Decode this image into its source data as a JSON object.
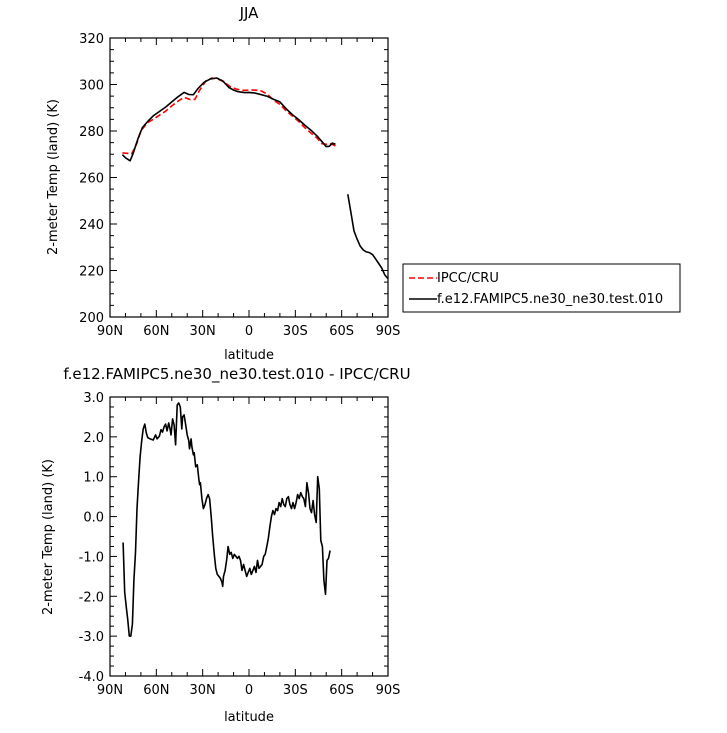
{
  "chart_data": [
    {
      "type": "line",
      "title": "JJA",
      "xlabel": "latitude",
      "ylabel": "2-meter Temp (land) (K)",
      "xlim": [
        90,
        -90
      ],
      "ylim": [
        200,
        320
      ],
      "x_ticks": [
        90,
        60,
        30,
        0,
        -30,
        -60,
        -90
      ],
      "x_tick_labels": [
        "90N",
        "60N",
        "30N",
        "0",
        "30S",
        "60S",
        "90S"
      ],
      "y_ticks": [
        200,
        220,
        240,
        260,
        280,
        300,
        320
      ],
      "y_tick_labels": [
        "200",
        "220",
        "240",
        "260",
        "280",
        "300",
        "320"
      ],
      "grid": false,
      "legend": "outside-right",
      "series": [
        {
          "name": "IPCC/CRU",
          "color": "#ff0000",
          "dash": "dashed",
          "segments": [
            [
              [
                82,
                270.6
              ],
              [
                79,
                270.4
              ],
              [
                76,
                270.2
              ],
              [
                73,
                274
              ],
              [
                70,
                280
              ],
              [
                66,
                283.5
              ],
              [
                62,
                285
              ],
              [
                58,
                286.8
              ],
              [
                54,
                288.5
              ],
              [
                50,
                290.8
              ],
              [
                46,
                292.8
              ],
              [
                42,
                294.5
              ],
              [
                38,
                293.5
              ],
              [
                35,
                293.6
              ],
              [
                32,
                297.5
              ],
              [
                28,
                301.5
              ],
              [
                24,
                302.8
              ],
              [
                20,
                302.3
              ],
              [
                16,
                301
              ],
              [
                12,
                299
              ],
              [
                8,
                298
              ],
              [
                4,
                297.5
              ],
              [
                0,
                297.6
              ],
              [
                -4,
                297.6
              ],
              [
                -8,
                297.2
              ],
              [
                -12,
                295.8
              ],
              [
                -16,
                293.2
              ],
              [
                -20,
                291.5
              ],
              [
                -24,
                288.7
              ],
              [
                -28,
                286.5
              ],
              [
                -32,
                284.2
              ],
              [
                -36,
                281.5
              ],
              [
                -40,
                279.2
              ],
              [
                -44,
                277
              ],
              [
                -47,
                274.6
              ],
              [
                -50,
                274.3
              ],
              [
                -53,
                274.6
              ],
              [
                -56,
                273.6
              ]
            ]
          ]
        },
        {
          "name": "f.e12.FAMIPC5.ne30_ne30.test.010",
          "color": "#000000",
          "dash": "solid",
          "segments": [
            [
              [
                82,
                269.8
              ],
              [
                80,
                268.5
              ],
              [
                77,
                267.2
              ],
              [
                75,
                270.4
              ],
              [
                72,
                276.5
              ],
              [
                69,
                281.5
              ],
              [
                65,
                284.5
              ],
              [
                62,
                286.5
              ],
              [
                58,
                288.4
              ],
              [
                54,
                290.3
              ],
              [
                50,
                292.5
              ],
              [
                46,
                294.7
              ],
              [
                42,
                296.6
              ],
              [
                39,
                295.7
              ],
              [
                36,
                295.6
              ],
              [
                33,
                298.3
              ],
              [
                29,
                301
              ],
              [
                25,
                302.4
              ],
              [
                21,
                302.8
              ],
              [
                17,
                301.6
              ],
              [
                13,
                298.7
              ],
              [
                10,
                297.6
              ],
              [
                7,
                296.9
              ],
              [
                3,
                296.5
              ],
              [
                0,
                296.6
              ],
              [
                -4,
                296.3
              ],
              [
                -8,
                295.6
              ],
              [
                -12,
                294.9
              ],
              [
                -16,
                293.6
              ],
              [
                -20,
                292.5
              ],
              [
                -24,
                289.6
              ],
              [
                -28,
                287.1
              ],
              [
                -32,
                285
              ],
              [
                -36,
                282.6
              ],
              [
                -40,
                280.4
              ],
              [
                -44,
                277.9
              ],
              [
                -47,
                275.6
              ],
              [
                -50,
                273.3
              ],
              [
                -52,
                273.4
              ],
              [
                -54,
                274.8
              ],
              [
                -56,
                274.3
              ]
            ],
            [
              [
                -64,
                252.8
              ],
              [
                -66,
                245
              ],
              [
                -68,
                237
              ],
              [
                -70,
                233.5
              ],
              [
                -72,
                230.5
              ],
              [
                -74,
                228.8
              ],
              [
                -76,
                228
              ],
              [
                -78,
                227.7
              ],
              [
                -80,
                226.8
              ],
              [
                -82,
                225
              ],
              [
                -84,
                223
              ],
              [
                -86,
                221
              ],
              [
                -88,
                218
              ],
              [
                -90,
                216.5
              ]
            ]
          ]
        }
      ]
    },
    {
      "type": "line",
      "title": "f.e12.FAMIPC5.ne30_ne30.test.010 - IPCC/CRU",
      "xlabel": "latitude",
      "ylabel": "2-meter Temp (land) (K)",
      "xlim": [
        90,
        -90
      ],
      "ylim": [
        -4,
        3
      ],
      "x_ticks": [
        90,
        60,
        30,
        0,
        -30,
        -60,
        -90
      ],
      "x_tick_labels": [
        "90N",
        "60N",
        "30N",
        "0",
        "30S",
        "60S",
        "90S"
      ],
      "y_ticks": [
        -4,
        -3,
        -2,
        -1,
        0,
        1,
        2,
        3
      ],
      "y_tick_labels": [
        "-4.0",
        "-3.0",
        "-2.0",
        "-1.0",
        "0.0",
        "1.0",
        "2.0",
        "3.0"
      ],
      "grid": false,
      "series": [
        {
          "color": "#000000",
          "dash": "solid",
          "segments": [
            [
              [
                81.5,
                -0.65
              ],
              [
                80.5,
                -1.9
              ],
              [
                79.5,
                -2.25
              ],
              [
                78.5,
                -2.6
              ],
              [
                77.5,
                -3.0
              ],
              [
                76.5,
                -3.0
              ],
              [
                75.5,
                -2.7
              ],
              [
                74.5,
                -1.6
              ],
              [
                73.5,
                -0.9
              ],
              [
                72.5,
                0.2
              ],
              [
                71.5,
                0.9
              ],
              [
                70.5,
                1.5
              ],
              [
                69.5,
                1.9
              ],
              [
                68.5,
                2.2
              ],
              [
                67.5,
                2.32
              ],
              [
                66.5,
                2.1
              ],
              [
                65.5,
                1.98
              ],
              [
                64,
                1.95
              ],
              [
                62,
                1.92
              ],
              [
                60.5,
                2.05
              ],
              [
                59.5,
                1.95
              ],
              [
                58,
                2.02
              ],
              [
                57,
                2.18
              ],
              [
                56,
                2.12
              ],
              [
                55,
                2.25
              ],
              [
                54,
                2.32
              ],
              [
                53,
                2.15
              ],
              [
                52,
                2.35
              ],
              [
                51,
                2.18
              ],
              [
                50.5,
                2.05
              ],
              [
                49.5,
                2.45
              ],
              [
                48.5,
                2.3
              ],
              [
                47.5,
                1.8
              ],
              [
                46.5,
                2.8
              ],
              [
                45.5,
                2.85
              ],
              [
                44.5,
                2.75
              ],
              [
                43.5,
                2.2
              ],
              [
                43,
                2.5
              ],
              [
                42,
                2.55
              ],
              [
                41,
                2.3
              ],
              [
                40,
                2.05
              ],
              [
                39,
                1.9
              ],
              [
                38.5,
                1.7
              ],
              [
                37.5,
                1.95
              ],
              [
                37,
                1.75
              ],
              [
                36,
                1.55
              ],
              [
                35.5,
                1.6
              ],
              [
                34.5,
                1.25
              ],
              [
                33.5,
                1.3
              ],
              [
                32.5,
                0.95
              ],
              [
                32,
                0.8
              ],
              [
                31.5,
                0.85
              ],
              [
                30.5,
                0.45
              ],
              [
                29.5,
                0.2
              ],
              [
                28.5,
                0.3
              ],
              [
                27.5,
                0.45
              ],
              [
                26.5,
                0.55
              ],
              [
                25.5,
                0.45
              ],
              [
                24.5,
                0.0
              ],
              [
                23.5,
                -0.5
              ],
              [
                22.5,
                -0.95
              ],
              [
                21.5,
                -1.3
              ],
              [
                20.5,
                -1.45
              ],
              [
                19.5,
                -1.5
              ],
              [
                18.5,
                -1.55
              ],
              [
                17.5,
                -1.65
              ],
              [
                17,
                -1.75
              ],
              [
                16.5,
                -1.5
              ],
              [
                15.5,
                -1.35
              ],
              [
                14.5,
                -1.1
              ],
              [
                13.5,
                -0.75
              ],
              [
                12.5,
                -0.95
              ],
              [
                11.5,
                -0.9
              ],
              [
                10.5,
                -1.05
              ],
              [
                9.5,
                -0.95
              ],
              [
                8.5,
                -1.0
              ],
              [
                7.5,
                -1.05
              ],
              [
                6.5,
                -1.0
              ],
              [
                5.5,
                -1.1
              ],
              [
                4.5,
                -1.35
              ],
              [
                3.5,
                -1.2
              ],
              [
                2.5,
                -1.35
              ],
              [
                1.5,
                -1.5
              ],
              [
                0.5,
                -1.4
              ],
              [
                -0.5,
                -1.3
              ],
              [
                -1.5,
                -1.45
              ],
              [
                -2.5,
                -1.35
              ],
              [
                -3.5,
                -1.25
              ],
              [
                -4.5,
                -1.4
              ],
              [
                -5.5,
                -1.1
              ],
              [
                -6.5,
                -1.3
              ],
              [
                -7.5,
                -1.25
              ],
              [
                -8.5,
                -1.2
              ],
              [
                -9.5,
                -1.0
              ],
              [
                -10.5,
                -0.95
              ],
              [
                -11.5,
                -0.75
              ],
              [
                -12.5,
                -0.55
              ],
              [
                -13.5,
                -0.25
              ],
              [
                -14.5,
                0.0
              ],
              [
                -15.5,
                0.15
              ],
              [
                -16.5,
                0.05
              ],
              [
                -17.5,
                0.2
              ],
              [
                -18.5,
                0.15
              ],
              [
                -19.5,
                0.35
              ],
              [
                -20.5,
                0.25
              ],
              [
                -21.5,
                0.45
              ],
              [
                -22.5,
                0.3
              ],
              [
                -23.5,
                0.25
              ],
              [
                -24.5,
                0.45
              ],
              [
                -25.5,
                0.5
              ],
              [
                -26.5,
                0.3
              ],
              [
                -27.5,
                0.2
              ],
              [
                -28.5,
                0.35
              ],
              [
                -29.5,
                0.2
              ],
              [
                -30.5,
                0.35
              ],
              [
                -31.5,
                0.55
              ],
              [
                -32.5,
                0.45
              ],
              [
                -33.5,
                0.6
              ],
              [
                -34.5,
                0.5
              ],
              [
                -35.5,
                0.45
              ],
              [
                -36.5,
                0.25
              ],
              [
                -37.5,
                0.85
              ],
              [
                -38.5,
                0.6
              ],
              [
                -39.5,
                0.2
              ],
              [
                -40.5,
                0.1
              ],
              [
                -41.5,
                0.4
              ],
              [
                -42.5,
                0.05
              ],
              [
                -43.5,
                -0.15
              ],
              [
                -44.5,
                1.0
              ],
              [
                -45.5,
                0.7
              ],
              [
                -46.5,
                -0.6
              ],
              [
                -47.5,
                -0.75
              ],
              [
                -48.5,
                -1.6
              ],
              [
                -49.5,
                -1.95
              ],
              [
                -50.5,
                -1.1
              ],
              [
                -51.5,
                -1.05
              ],
              [
                -52.5,
                -0.85
              ]
            ]
          ]
        }
      ]
    }
  ]
}
